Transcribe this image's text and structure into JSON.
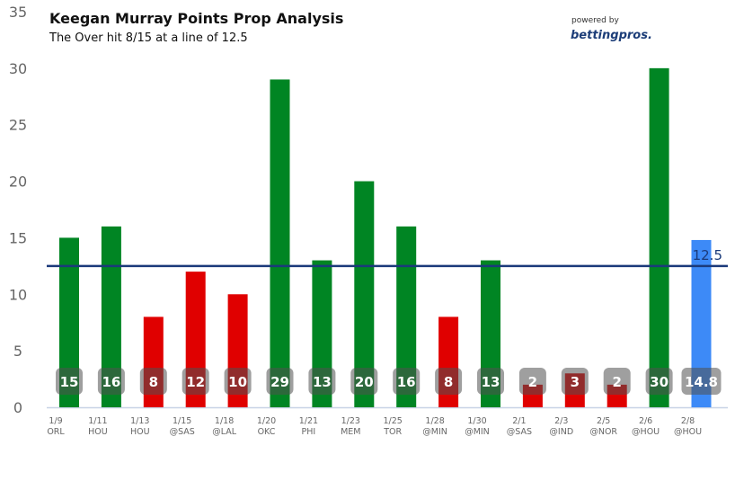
{
  "chart_data": {
    "type": "bar",
    "title": "Keegan Murray Points Prop Analysis",
    "subtitle": "The Over hit 8/15 at a line of 12.5",
    "xlabel": "",
    "ylabel": "",
    "ylim": [
      0,
      35
    ],
    "yticks": [
      0,
      5,
      10,
      15,
      20,
      25,
      30,
      35
    ],
    "line": 12.5,
    "line_label": "12.5",
    "categories": [
      {
        "date": "1/9",
        "opp": "ORL"
      },
      {
        "date": "1/11",
        "opp": "HOU"
      },
      {
        "date": "1/13",
        "opp": "HOU"
      },
      {
        "date": "1/15",
        "opp": "@SAS"
      },
      {
        "date": "1/18",
        "opp": "@LAL"
      },
      {
        "date": "1/20",
        "opp": "OKC"
      },
      {
        "date": "1/21",
        "opp": "PHI"
      },
      {
        "date": "1/23",
        "opp": "MEM"
      },
      {
        "date": "1/25",
        "opp": "TOR"
      },
      {
        "date": "1/28",
        "opp": "@MIN"
      },
      {
        "date": "1/30",
        "opp": "@MIN"
      },
      {
        "date": "2/1",
        "opp": "@SAS"
      },
      {
        "date": "2/3",
        "opp": "@IND"
      },
      {
        "date": "2/5",
        "opp": "@NOR"
      },
      {
        "date": "2/6",
        "opp": "@HOU"
      },
      {
        "date": "2/8",
        "opp": "@HOU"
      }
    ],
    "values": [
      15,
      16,
      8,
      12,
      10,
      29,
      13,
      20,
      16,
      8,
      13,
      2,
      3,
      2,
      30,
      14.8
    ],
    "value_labels": [
      "15",
      "16",
      "8",
      "12",
      "10",
      "29",
      "13",
      "20",
      "16",
      "8",
      "13",
      "2",
      "3",
      "2",
      "30",
      "14.8"
    ],
    "bar_status": [
      "over",
      "over",
      "under",
      "under",
      "under",
      "over",
      "over",
      "over",
      "over",
      "under",
      "over",
      "under",
      "under",
      "under",
      "over",
      "projection"
    ],
    "colors": {
      "over": "#008523",
      "under": "#e00000",
      "projection": "#3d8af7",
      "line": "#1b3a7a",
      "axis": "#c8d2e6"
    }
  },
  "branding": {
    "powered_by": "powered by",
    "brand": "bettingpros."
  }
}
